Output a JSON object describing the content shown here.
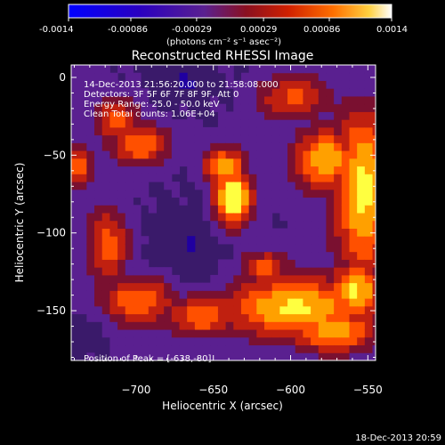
{
  "colorbar": {
    "ticks": [
      "-0.0014",
      "-0.00086",
      "-0.00029",
      "0.00029",
      "0.00086",
      "0.0014"
    ],
    "unit_label": "(photons cm⁻² s⁻¹ asec⁻²)",
    "range": [
      -0.0014,
      0.0014
    ]
  },
  "footer": {
    "timestamp": "18-Dec-2013 20:59"
  },
  "chart_data": {
    "type": "heatmap",
    "title": "Reconstructed RHESSI Image",
    "xlabel": "Heliocentric X (arcsec)",
    "ylabel": "Heliocentric Y (arcsec)",
    "xlim": [
      -742,
      -545
    ],
    "ylim": [
      -182,
      8
    ],
    "x_ticks": [
      -700,
      -650,
      -600,
      -550
    ],
    "y_ticks": [
      0,
      -50,
      -100,
      -150
    ],
    "annotations": [
      "14-Dec-2013 21:56:20.000 to 21:58:08.000",
      "Detectors: 3F 5F 6F 7F 8F 9F, Att 0",
      "Energy Range: 25.0 - 50.0 keV",
      "Clean    Total counts: 1.06E+04"
    ],
    "peak_label": "Position of Peak = [-638,-80]",
    "peak_position": [
      -638,
      -80
    ],
    "colormap": [
      "#0000ff",
      "#2000a0",
      "#3a1070",
      "#5a2090",
      "#7a1030",
      "#c02010",
      "#ff5000",
      "#ffa000",
      "#ffff40",
      "#ffffff"
    ]
  }
}
